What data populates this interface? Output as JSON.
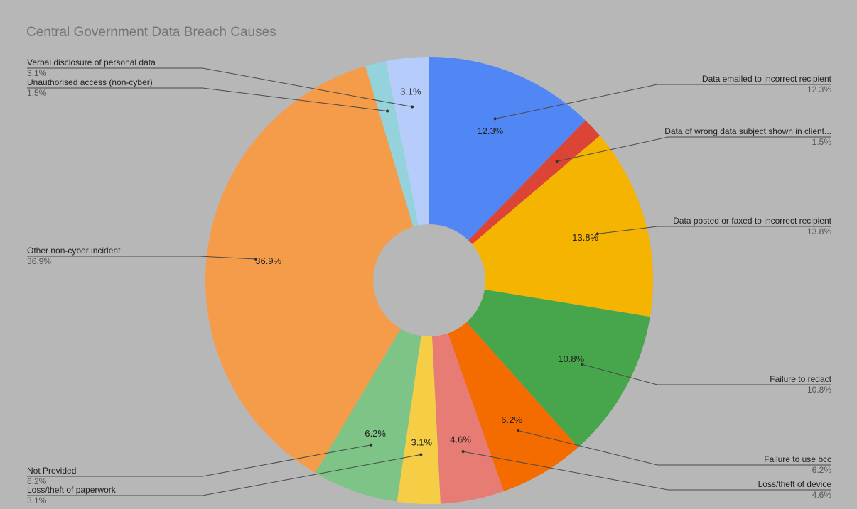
{
  "chart_data": {
    "type": "pie",
    "donut": true,
    "title": "Central Government Data Breach Causes",
    "slices": [
      {
        "name": "Data emailed to incorrect recipient",
        "label": "12.3%",
        "value": 12.3,
        "color": "#5087f5"
      },
      {
        "name": "Data of wrong data subject shown in client...",
        "label": "1.5%",
        "value": 1.5,
        "color": "#dc4436"
      },
      {
        "name": "Data posted or faxed to incorrect recipient",
        "label": "13.8%",
        "value": 13.8,
        "color": "#f4b400"
      },
      {
        "name": "Failure to redact",
        "label": "10.8%",
        "value": 10.8,
        "color": "#47a64b"
      },
      {
        "name": "Failure to use bcc",
        "label": "6.2%",
        "value": 6.2,
        "color": "#f46b00"
      },
      {
        "name": "Loss/theft of device",
        "label": "4.6%",
        "value": 4.6,
        "color": "#e67c73"
      },
      {
        "name": "Loss/theft of paperwork",
        "label": "3.1%",
        "value": 3.1,
        "color": "#f6ce46"
      },
      {
        "name": "Not Provided",
        "label": "6.2%",
        "value": 6.2,
        "color": "#7dc486"
      },
      {
        "name": "Other non-cyber incident",
        "label": "36.9%",
        "value": 36.9,
        "color": "#f59c4a"
      },
      {
        "name": "Unauthorised access (non-cyber)",
        "label": "1.5%",
        "value": 1.5,
        "color": "#94d3dc"
      },
      {
        "name": "Verbal disclosure of personal data",
        "label": "3.1%",
        "value": 3.1,
        "color": "#b6cdfb"
      }
    ],
    "legend": "callouts"
  }
}
